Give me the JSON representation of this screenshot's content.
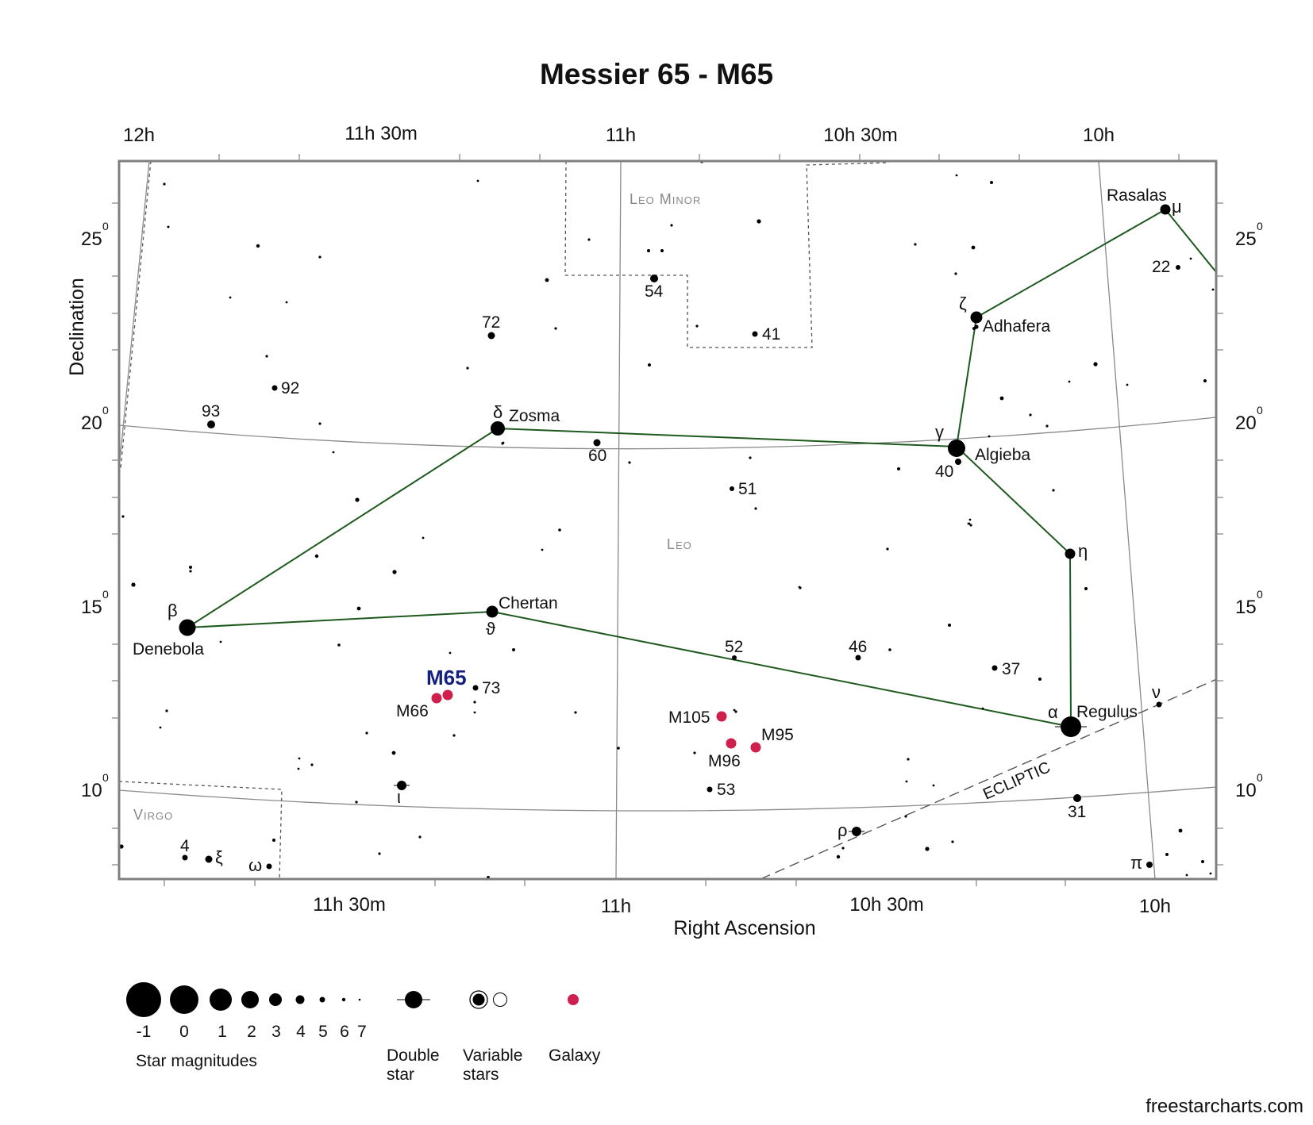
{
  "title": "Messier 65 - M65",
  "credit": "freestarcharts.com",
  "colors": {
    "constellation_line": "#1e5a1e",
    "galaxy": "#cf1f4c",
    "m65_label": "#13207e",
    "grid": "#8a8a8a",
    "frame": "#808080"
  },
  "axes": {
    "xlabel": "Right Ascension",
    "ylabel": "Declination",
    "ra_ticks_top": [
      "12h",
      "11h 30m",
      "11h",
      "10h 30m",
      "10h"
    ],
    "ra_ticks_bottom": [
      "11h 30m",
      "11h",
      "10h 30m",
      "10h"
    ],
    "dec_ticks": [
      {
        "value": "25",
        "sup": "0"
      },
      {
        "value": "20",
        "sup": "0"
      },
      {
        "value": "15",
        "sup": "0"
      },
      {
        "value": "10",
        "sup": "0"
      }
    ]
  },
  "constellations": {
    "leo": "Leo",
    "leo_minor": "Leo Minor",
    "virgo": "Virgo"
  },
  "ecliptic_label": "ECLIPTIC",
  "target_label": "M65",
  "galaxies": [
    "M66",
    "M105",
    "M95",
    "M96"
  ],
  "named_stars": [
    "Rasalas",
    "Adhafera",
    "Zosma",
    "Algieba",
    "Chertan",
    "Denebola",
    "Regulus"
  ],
  "greek": [
    "μ",
    "ζ",
    "δ",
    "γ",
    "η",
    "β",
    "ϑ",
    "α",
    "ν",
    "ι",
    "ξ",
    "ω",
    "ρ",
    "π"
  ],
  "flamsteed": [
    "22",
    "54",
    "72",
    "41",
    "92",
    "93",
    "60",
    "40",
    "51",
    "52",
    "46",
    "37",
    "73",
    "53",
    "31",
    "4"
  ],
  "legend": {
    "magnitudes": [
      "-1",
      "0",
      "1",
      "2",
      "3",
      "4",
      "5",
      "6",
      "7"
    ],
    "magnitudes_caption": "Star magnitudes",
    "double_star": [
      "Double",
      "star"
    ],
    "variable_stars": [
      "Variable",
      "stars"
    ],
    "galaxy": "Galaxy"
  }
}
